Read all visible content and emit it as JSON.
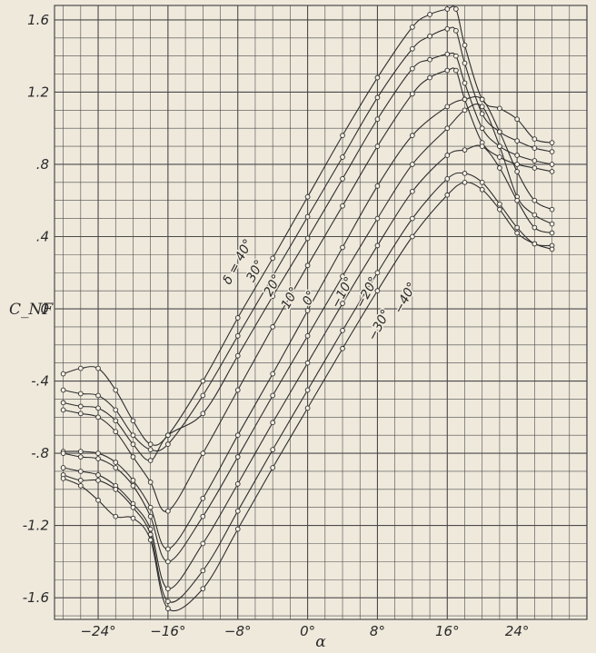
{
  "chart_data": {
    "type": "line",
    "title": "",
    "xlabel": "α",
    "ylabel": "C_NF",
    "xlim": [
      -29,
      32
    ],
    "ylim": [
      -1.72,
      1.68
    ],
    "grid": true,
    "x_ticks": [
      {
        "value": -24,
        "label": "−24°"
      },
      {
        "value": -16,
        "label": "−16°"
      },
      {
        "value": -8,
        "label": "−8°"
      },
      {
        "value": 0,
        "label": "0°"
      },
      {
        "value": 8,
        "label": "8°"
      },
      {
        "value": 16,
        "label": "16°"
      },
      {
        "value": 24,
        "label": "24°"
      }
    ],
    "y_ticks": [
      {
        "value": 1.6,
        "label": "1.6"
      },
      {
        "value": 1.2,
        "label": "1.2"
      },
      {
        "value": 0.8,
        "label": ".8"
      },
      {
        "value": 0.4,
        "label": ".4"
      },
      {
        "value": 0,
        "label": "0"
      },
      {
        "value": -0.4,
        "label": "-.4"
      },
      {
        "value": -0.8,
        "label": "-.8"
      },
      {
        "value": -1.2,
        "label": "-1.2"
      },
      {
        "value": -1.6,
        "label": "-1.6"
      }
    ],
    "series": [
      {
        "name": "δ = 40°",
        "label_at": [
          -7.6,
          0.25
        ],
        "label_angle": -62,
        "x": [
          -28,
          -26,
          -24,
          -22,
          -20,
          -18,
          -16,
          -12,
          -8,
          -4,
          0,
          4,
          8,
          12,
          14,
          16,
          17,
          18,
          20,
          22,
          24,
          26,
          28
        ],
        "y": [
          -0.36,
          -0.33,
          -0.33,
          -0.45,
          -0.62,
          -0.75,
          -0.7,
          -0.4,
          -0.05,
          0.28,
          0.62,
          0.96,
          1.28,
          1.56,
          1.63,
          1.66,
          1.66,
          1.46,
          1.16,
          1.11,
          1.05,
          0.94,
          0.92
        ]
      },
      {
        "name": "30°",
        "label_at": [
          -5.6,
          0.2
        ],
        "label_angle": -62,
        "x": [
          -28,
          -26,
          -24,
          -22,
          -20,
          -18,
          -16,
          -12,
          -8,
          -4,
          0,
          4,
          8,
          12,
          14,
          16,
          17,
          18,
          20,
          22,
          24,
          26,
          28
        ],
        "y": [
          -0.45,
          -0.47,
          -0.48,
          -0.56,
          -0.7,
          -0.78,
          -0.75,
          -0.48,
          -0.15,
          0.18,
          0.51,
          0.84,
          1.17,
          1.44,
          1.51,
          1.55,
          1.54,
          1.36,
          1.08,
          0.98,
          0.93,
          0.89,
          0.87
        ]
      },
      {
        "name": "20°",
        "label_at": [
          -3.6,
          0.12
        ],
        "label_angle": -62,
        "x": [
          -28,
          -26,
          -24,
          -22,
          -20,
          -18,
          -16,
          -12,
          -8,
          -4,
          0,
          4,
          8,
          12,
          14,
          16,
          17,
          18,
          20,
          22,
          24,
          26,
          28
        ],
        "y": [
          -0.52,
          -0.54,
          -0.55,
          -0.62,
          -0.75,
          -0.84,
          -0.7,
          -0.58,
          -0.26,
          0.07,
          0.39,
          0.72,
          1.05,
          1.33,
          1.38,
          1.41,
          1.4,
          1.25,
          1.0,
          0.9,
          0.85,
          0.82,
          0.8
        ]
      },
      {
        "name": "10°",
        "label_at": [
          -1.6,
          0.05
        ],
        "label_angle": -62,
        "x": [
          -28,
          -26,
          -24,
          -22,
          -20,
          -18,
          -16,
          -12,
          -8,
          -4,
          0,
          4,
          8,
          12,
          14,
          16,
          17,
          18,
          20,
          22,
          24,
          26,
          28
        ],
        "y": [
          -0.56,
          -0.58,
          -0.6,
          -0.68,
          -0.82,
          -0.96,
          -1.12,
          -0.8,
          -0.45,
          -0.1,
          0.24,
          0.57,
          0.9,
          1.19,
          1.28,
          1.32,
          1.32,
          1.16,
          0.92,
          0.84,
          0.8,
          0.78,
          0.76
        ]
      },
      {
        "name": "0°",
        "label_at": [
          0.6,
          0.05
        ],
        "label_angle": -62,
        "x": [
          -28,
          -26,
          -24,
          -22,
          -20,
          -18,
          -16,
          -12,
          -8,
          -4,
          0,
          4,
          8,
          12,
          16,
          18,
          20,
          22,
          24,
          26,
          28
        ],
        "y": [
          -0.79,
          -0.79,
          -0.8,
          -0.85,
          -0.95,
          -1.1,
          -1.33,
          -1.05,
          -0.7,
          -0.36,
          -0.01,
          0.34,
          0.68,
          0.96,
          1.12,
          1.16,
          1.16,
          0.98,
          0.76,
          0.6,
          0.55
        ]
      },
      {
        "name": "−10°",
        "label_at": [
          4.4,
          0.08
        ],
        "label_angle": -62,
        "x": [
          -28,
          -26,
          -24,
          -22,
          -20,
          -18,
          -16,
          -12,
          -8,
          -4,
          0,
          4,
          8,
          12,
          16,
          18,
          20,
          22,
          24,
          26,
          28
        ],
        "y": [
          -0.8,
          -0.82,
          -0.83,
          -0.88,
          -0.98,
          -1.15,
          -1.4,
          -1.15,
          -0.82,
          -0.48,
          -0.15,
          0.18,
          0.5,
          0.8,
          1.0,
          1.1,
          1.12,
          0.9,
          0.62,
          0.52,
          0.47
        ]
      },
      {
        "name": "−20°",
        "label_at": [
          7.2,
          0.08
        ],
        "label_angle": -62,
        "x": [
          -28,
          -26,
          -24,
          -22,
          -20,
          -18,
          -16,
          -12,
          -8,
          -4,
          0,
          4,
          8,
          12,
          16,
          18,
          20,
          22,
          24,
          26,
          28
        ],
        "y": [
          -0.88,
          -0.9,
          -0.92,
          -0.98,
          -1.08,
          -1.22,
          -1.55,
          -1.3,
          -0.97,
          -0.63,
          -0.3,
          0.03,
          0.35,
          0.65,
          0.85,
          0.88,
          0.9,
          0.78,
          0.6,
          0.45,
          0.42
        ]
      },
      {
        "name": "−30°",
        "label_at": [
          8.6,
          -0.1
        ],
        "label_angle": -62,
        "x": [
          -28,
          -26,
          -24,
          -22,
          -20,
          -18,
          -16,
          -12,
          -8,
          -4,
          0,
          4,
          8,
          12,
          16,
          18,
          20,
          22,
          24,
          26,
          28
        ],
        "y": [
          -0.92,
          -0.95,
          -0.95,
          -1.0,
          -1.1,
          -1.25,
          -1.62,
          -1.45,
          -1.12,
          -0.78,
          -0.45,
          -0.12,
          0.2,
          0.5,
          0.72,
          0.75,
          0.7,
          0.58,
          0.45,
          0.36,
          0.35
        ]
      },
      {
        "name": "−40°",
        "label_at": [
          11.6,
          0.05
        ],
        "label_angle": -62,
        "x": [
          -28,
          -26,
          -24,
          -22,
          -20,
          -18,
          -16,
          -12,
          -8,
          -4,
          0,
          4,
          8,
          12,
          16,
          18,
          20,
          22,
          24,
          26,
          28
        ],
        "y": [
          -0.94,
          -0.98,
          -1.06,
          -1.15,
          -1.16,
          -1.28,
          -1.66,
          -1.55,
          -1.22,
          -0.88,
          -0.55,
          -0.22,
          0.1,
          0.4,
          0.63,
          0.7,
          0.66,
          0.55,
          0.42,
          0.36,
          0.33
        ]
      }
    ]
  },
  "colors": {
    "background": "#efe9dc",
    "grid": "#4a4a4a",
    "curve": "#2e2e2e",
    "marker_fill": "#f4efe4"
  }
}
